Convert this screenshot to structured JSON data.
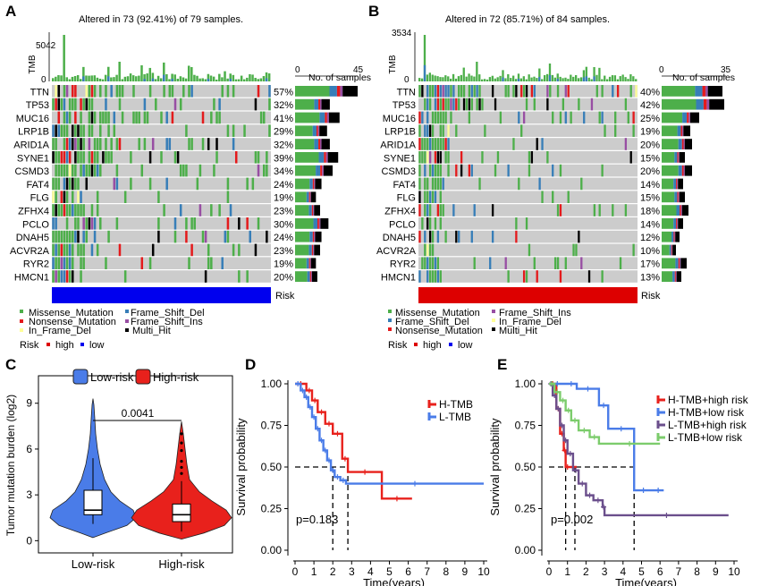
{
  "panels": {
    "A": "A",
    "B": "B",
    "C": "C",
    "D": "D",
    "E": "E"
  },
  "oncoA": {
    "title": "Altered in 73 (92.41%) of 79 samples.",
    "tmb_label": "TMB",
    "tmb_max": "5042",
    "tmb_min": "0",
    "axis_min": "0",
    "axis_max": "45",
    "axis_label": "No. of samples",
    "risk_label": "Risk",
    "risk_color": "#0000ee",
    "genes": [
      "TTN",
      "TP53",
      "MUC16",
      "LRP1B",
      "ARID1A",
      "SYNE1",
      "CSMD3",
      "FAT4",
      "FLG",
      "ZFHX4",
      "PCLO",
      "DNAH5",
      "ACVR2A",
      "RYR2",
      "HMCN1"
    ],
    "pct": [
      "57%",
      "32%",
      "41%",
      "29%",
      "32%",
      "39%",
      "34%",
      "24%",
      "19%",
      "23%",
      "30%",
      "24%",
      "23%",
      "19%",
      "20%"
    ],
    "counts": [
      45,
      25,
      32,
      23,
      25,
      31,
      27,
      19,
      15,
      18,
      24,
      19,
      18,
      15,
      16
    ]
  },
  "oncoB": {
    "title": "Altered in 72 (85.71%) of 84 samples.",
    "tmb_label": "TMB",
    "tmb_max": "3534",
    "tmb_min": "0",
    "axis_min": "0",
    "axis_max": "35",
    "axis_label": "No. of samples",
    "risk_label": "Risk",
    "risk_color": "#dd0000",
    "genes": [
      "TTN",
      "TP53",
      "MUC16",
      "LRP1B",
      "ARID1A",
      "SYNE1",
      "CSMD3",
      "FAT4",
      "FLG",
      "ZFHX4",
      "PCLO",
      "DNAH5",
      "ACVR2A",
      "RYR2",
      "HMCN1"
    ],
    "pct": [
      "40%",
      "42%",
      "25%",
      "19%",
      "20%",
      "15%",
      "20%",
      "14%",
      "15%",
      "18%",
      "14%",
      "12%",
      "10%",
      "17%",
      "13%"
    ],
    "counts": [
      34,
      35,
      21,
      16,
      17,
      13,
      17,
      12,
      13,
      15,
      12,
      10,
      8,
      14,
      11
    ]
  },
  "legendA": {
    "items": [
      {
        "label": "Missense_Mutation",
        "color": "#4daf4a"
      },
      {
        "label": "Frame_Shift_Del",
        "color": "#377eb8"
      },
      {
        "label": "Nonsense_Mutation",
        "color": "#e41a1c"
      },
      {
        "label": "Frame_Shift_Ins",
        "color": "#984ea3"
      },
      {
        "label": "In_Frame_Del",
        "color": "#ffff99"
      },
      {
        "label": "Multi_Hit",
        "color": "#000000"
      }
    ],
    "risk_title": "Risk",
    "risk_high": "high",
    "risk_low": "low"
  },
  "legendB": {
    "items": [
      {
        "label": "Missense_Mutation",
        "color": "#4daf4a"
      },
      {
        "label": "Frame_Shift_Ins",
        "color": "#984ea3"
      },
      {
        "label": "Frame_Shift_Del",
        "color": "#377eb8"
      },
      {
        "label": "In_Frame_Del",
        "color": "#ffff99"
      },
      {
        "label": "Nonsense_Mutation",
        "color": "#e41a1c"
      },
      {
        "label": "Multi_Hit",
        "color": "#000000"
      }
    ],
    "risk_title": "Risk",
    "risk_high": "high",
    "risk_low": "low"
  },
  "colors": {
    "high": "#dd0000",
    "low": "#0000ee",
    "grey": "#cccccc"
  },
  "chart_data": [
    {
      "type": "violin",
      "panel": "C",
      "ylabel": "Tumor mutation burden (log2)",
      "categories": [
        "Low-risk",
        "High-risk"
      ],
      "legend": [
        "Low-risk",
        "High-risk"
      ],
      "colors": [
        "#4a7ce8",
        "#e8211c"
      ],
      "pvalue": "0.0041",
      "yticks": [
        0,
        3,
        6,
        9
      ],
      "ylim": [
        -0.8,
        10.8
      ],
      "median": [
        2.0,
        1.7
      ],
      "q1": [
        1.7,
        1.25
      ],
      "q3": [
        3.3,
        2.4
      ],
      "min": [
        1.1,
        0.6
      ],
      "max": [
        5.4,
        3.9
      ]
    },
    {
      "type": "line",
      "panel": "D",
      "xlabel": "Time(years)",
      "ylabel": "Survival probability",
      "xticks": [
        0,
        1,
        2,
        3,
        4,
        5,
        6,
        7,
        8,
        9,
        10
      ],
      "yticks": [
        "0.00",
        "0.25",
        "0.50",
        "0.75",
        "1.00"
      ],
      "xlim": [
        0,
        10
      ],
      "ylim": [
        0,
        1
      ],
      "pvalue": "p=0.183",
      "median_times": [
        2.0,
        2.8
      ],
      "series": [
        {
          "name": "H-TMB",
          "color": "#e8211c",
          "x": [
            0,
            0.6,
            0.9,
            1.2,
            1.6,
            2.0,
            2.5,
            2.8,
            4.6,
            6.2
          ],
          "y": [
            1,
            0.96,
            0.9,
            0.83,
            0.76,
            0.7,
            0.55,
            0.47,
            0.31,
            0.31
          ]
        },
        {
          "name": "L-TMB",
          "color": "#4a7ce8",
          "x": [
            0,
            0.3,
            0.5,
            0.7,
            0.9,
            1.1,
            1.3,
            1.5,
            1.7,
            1.9,
            2.1,
            2.4,
            2.7,
            10
          ],
          "y": [
            1,
            0.96,
            0.92,
            0.86,
            0.8,
            0.73,
            0.66,
            0.6,
            0.54,
            0.48,
            0.44,
            0.42,
            0.4,
            0.4
          ]
        }
      ]
    },
    {
      "type": "line",
      "panel": "E",
      "xlabel": "Time(years)",
      "ylabel": "Survival probability",
      "xticks": [
        0,
        1,
        2,
        3,
        4,
        5,
        6,
        7,
        8,
        9,
        10
      ],
      "yticks": [
        "0.00",
        "0.25",
        "0.50",
        "0.75",
        "1.00"
      ],
      "xlim": [
        0,
        10
      ],
      "ylim": [
        0,
        1
      ],
      "pvalue": "p=0.002",
      "median_times": [
        0.9,
        1.4,
        4.6
      ],
      "series": [
        {
          "name": "H-TMB+high risk",
          "color": "#e8211c",
          "x": [
            0,
            0.4,
            0.6,
            0.8,
            0.9,
            1.1,
            1.5
          ],
          "y": [
            1,
            0.85,
            0.7,
            0.6,
            0.5,
            0.5,
            0.5
          ]
        },
        {
          "name": "H-TMB+low risk",
          "color": "#4a7ce8",
          "x": [
            0,
            0.9,
            1.5,
            2.7,
            3.2,
            4.6,
            5.6,
            6.2
          ],
          "y": [
            1,
            1,
            0.97,
            0.87,
            0.73,
            0.36,
            0.36,
            0.36
          ]
        },
        {
          "name": "L-TMB+high risk",
          "color": "#6b4f8c",
          "x": [
            0,
            0.2,
            0.4,
            0.6,
            0.8,
            1.0,
            1.3,
            1.6,
            2.0,
            2.4,
            2.9,
            3.0,
            9.7
          ],
          "y": [
            1,
            0.93,
            0.85,
            0.75,
            0.66,
            0.58,
            0.48,
            0.4,
            0.33,
            0.3,
            0.26,
            0.21,
            0.21
          ]
        },
        {
          "name": "L-TMB+low risk",
          "color": "#7ccc6c",
          "x": [
            0,
            0.3,
            0.6,
            0.9,
            1.2,
            1.6,
            2.2,
            2.7,
            6.0
          ],
          "y": [
            1,
            0.95,
            0.9,
            0.84,
            0.78,
            0.72,
            0.68,
            0.64,
            0.64
          ]
        }
      ]
    }
  ]
}
